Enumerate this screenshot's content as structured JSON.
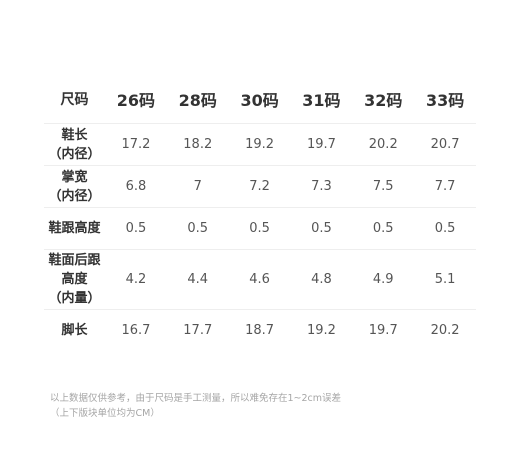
{
  "table": {
    "header": {
      "first": "尺码",
      "sizes": [
        "26码",
        "28码",
        "30码",
        "31码",
        "32码",
        "33码"
      ]
    },
    "rows": [
      {
        "label_lines": [
          "鞋长",
          "（内径）"
        ],
        "values": [
          "17.2",
          "18.2",
          "19.2",
          "19.7",
          "20.2",
          "20.7"
        ]
      },
      {
        "label_lines": [
          "掌宽",
          "（内径）"
        ],
        "values": [
          "6.8",
          "7",
          "7.2",
          "7.3",
          "7.5",
          "7.7"
        ]
      },
      {
        "label_lines": [
          "鞋跟高度"
        ],
        "values": [
          "0.5",
          "0.5",
          "0.5",
          "0.5",
          "0.5",
          "0.5"
        ]
      },
      {
        "label_lines": [
          "鞋面后跟",
          "高度",
          "（内量）"
        ],
        "values": [
          "4.2",
          "4.4",
          "4.6",
          "4.8",
          "4.9",
          "5.1"
        ]
      },
      {
        "label_lines": [
          "脚长"
        ],
        "values": [
          "16.7",
          "17.7",
          "18.7",
          "19.2",
          "19.7",
          "20.2"
        ]
      }
    ]
  },
  "footnote": {
    "line1": "以上数据仅供参考，由于尺码是手工测量，所以难免存在1~2cm误差",
    "line2": "（上下版块单位均为CM）"
  }
}
